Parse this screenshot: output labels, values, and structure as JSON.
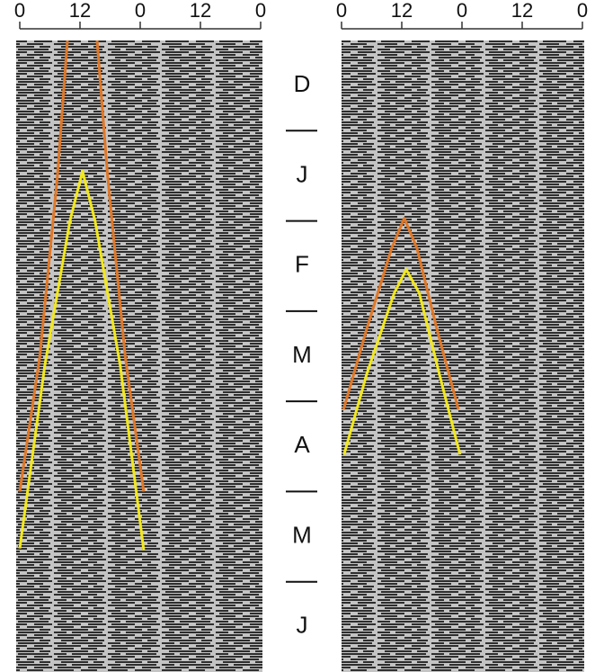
{
  "chart_data": [
    {
      "type": "actogram",
      "xlim": [
        0,
        48
      ],
      "xticks": [
        0,
        12,
        {
          "value": 24,
          "label": "0"
        },
        {
          "value": 36,
          "label": "12"
        },
        {
          "value": 48,
          "label": "0"
        }
      ],
      "ylim": [
        0,
        7
      ],
      "categories": [
        "D",
        "J",
        "F",
        "M",
        "A",
        "M",
        "J"
      ],
      "series": [
        {
          "color": "#e07828",
          "x": [
            0,
            4,
            7.5,
            9.5
          ],
          "values": [
            5.0,
            3.5,
            1.5,
            0
          ]
        },
        {
          "color": "#e07828",
          "x": [
            15.4,
            17.5,
            21,
            24.7
          ],
          "values": [
            0,
            1.5,
            3.5,
            5.0
          ]
        },
        {
          "color": "#f2e81c",
          "x": [
            0,
            5,
            10,
            12.5,
            15,
            20,
            24.7
          ],
          "values": [
            5.63,
            3.6,
            2.0,
            1.45,
            2.0,
            3.6,
            5.65
          ]
        }
      ]
    },
    {
      "type": "actogram",
      "xlim": [
        0,
        48
      ],
      "xticks": [
        0,
        12,
        {
          "value": 24,
          "label": "0"
        },
        {
          "value": 36,
          "label": "12"
        },
        {
          "value": 48,
          "label": "0"
        }
      ],
      "ylim": [
        0,
        7
      ],
      "series": [
        {
          "color": "#e07828",
          "x": [
            0.4,
            5,
            10,
            12.5,
            15,
            19,
            23.3
          ],
          "values": [
            4.09,
            3.2,
            2.3,
            1.97,
            2.3,
            3.2,
            4.09
          ]
        },
        {
          "color": "#f2e81c",
          "x": [
            0.5,
            5,
            10.5,
            12.9,
            15.5,
            19.5,
            23.6
          ],
          "values": [
            4.59,
            3.7,
            2.8,
            2.54,
            2.8,
            3.7,
            4.59
          ]
        }
      ]
    }
  ]
}
